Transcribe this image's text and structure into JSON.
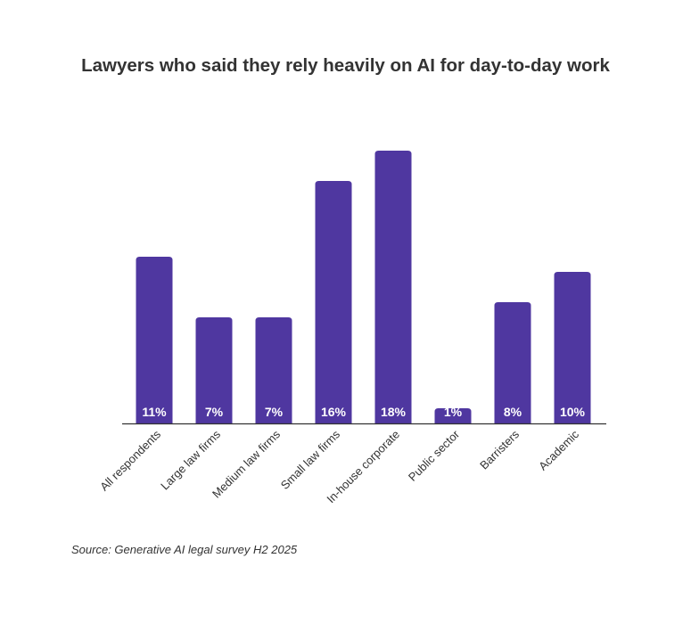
{
  "chart_data": {
    "type": "bar",
    "title": "Lawyers who said they rely heavily on AI for day-to-day work",
    "categories": [
      "All respondents",
      "Large law firms",
      "Medium law firms",
      "Small law firms",
      "In-house corporate",
      "Public sector",
      "Barristers",
      "Academic"
    ],
    "values": [
      11,
      7,
      7,
      16,
      18,
      1,
      8,
      10
    ],
    "value_labels": [
      "11%",
      "7%",
      "7%",
      "16%",
      "18%",
      "1%",
      "8%",
      "10%"
    ],
    "xlabel": "",
    "ylabel": "",
    "ylim": [
      0,
      18
    ],
    "grid": false,
    "legend": "none",
    "bar_color": "#4f37a0",
    "source": "Source: Generative AI legal survey H2 2025"
  }
}
